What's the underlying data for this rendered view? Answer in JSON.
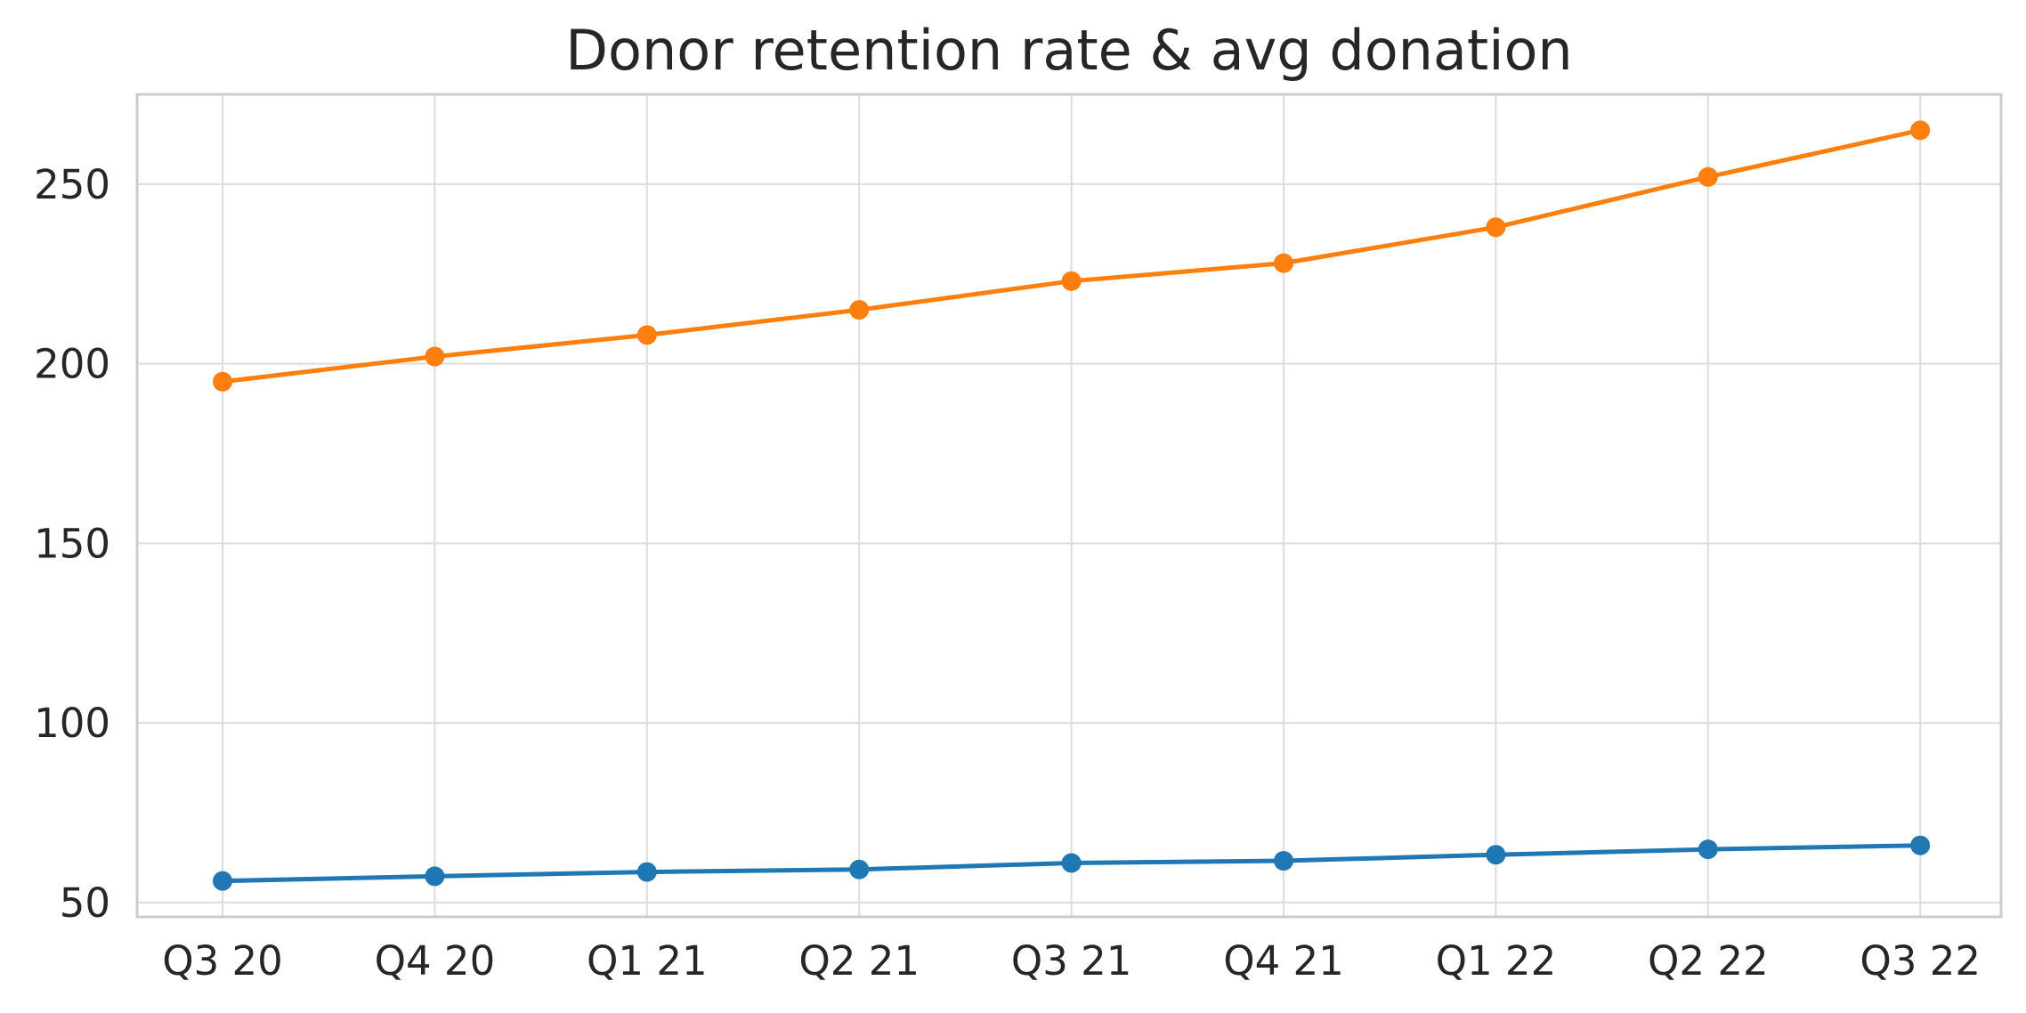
{
  "chart_data": {
    "type": "line",
    "title": "Donor retention rate & avg donation",
    "xlabel": "",
    "ylabel": "",
    "categories": [
      "Q3 20",
      "Q4 20",
      "Q1 21",
      "Q2 21",
      "Q3 21",
      "Q4 21",
      "Q1 22",
      "Q2 22",
      "Q3 22"
    ],
    "ylim": [
      46,
      275
    ],
    "yticks": [
      50,
      100,
      150,
      200,
      250
    ],
    "grid": true,
    "legend": "none",
    "series": [
      {
        "color": "#1f77b4",
        "values": [
          56,
          57.3,
          58.5,
          59.2,
          61,
          61.6,
          63.3,
          64.8,
          65.9
        ]
      },
      {
        "color": "#ff7f0e",
        "values": [
          195,
          202,
          208,
          215,
          223,
          228,
          238,
          252,
          265
        ]
      }
    ]
  }
}
